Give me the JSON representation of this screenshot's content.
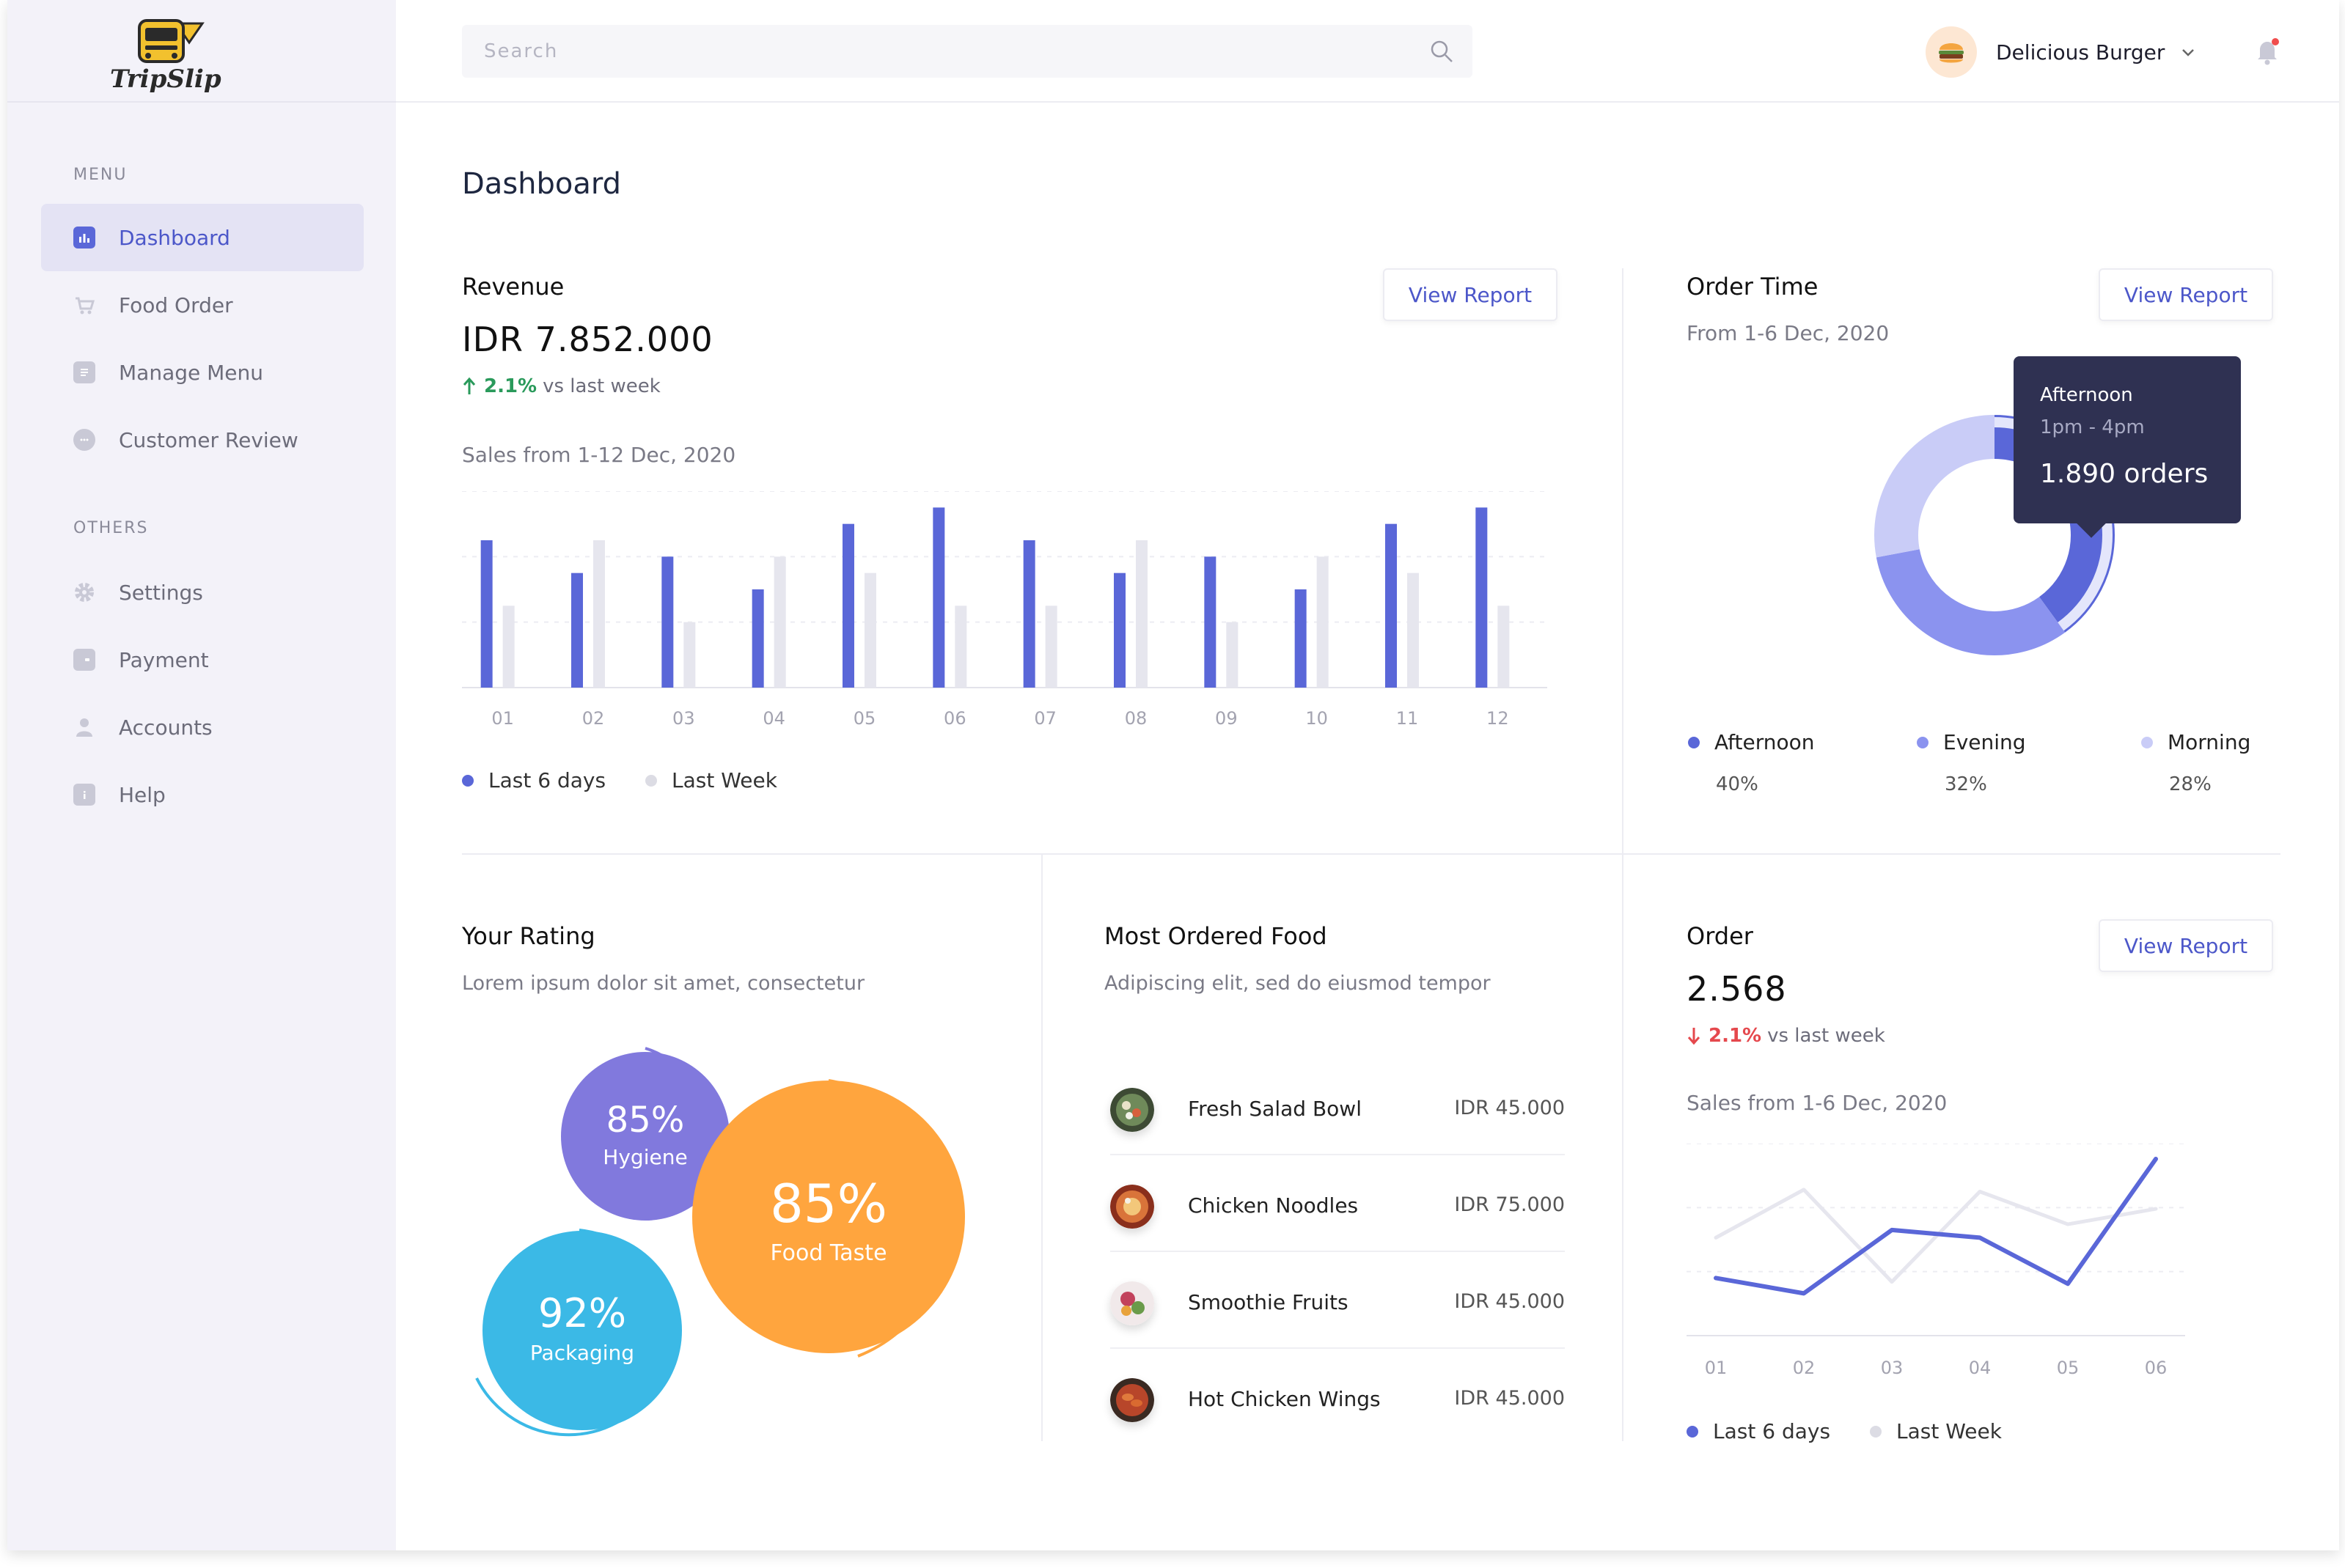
{
  "app": {
    "logo_text": "TripSlip"
  },
  "sidebar": {
    "menu_label": "MENU",
    "others_label": "OTHERS",
    "menu_items": [
      {
        "label": "Dashboard",
        "icon": "chart-icon",
        "active": true
      },
      {
        "label": "Food Order",
        "icon": "cart-icon"
      },
      {
        "label": "Manage Menu",
        "icon": "document-icon"
      },
      {
        "label": "Customer Review",
        "icon": "chat-icon"
      }
    ],
    "other_items": [
      {
        "label": "Settings",
        "icon": "gear-icon"
      },
      {
        "label": "Payment",
        "icon": "wallet-icon"
      },
      {
        "label": "Accounts",
        "icon": "user-icon"
      },
      {
        "label": "Help",
        "icon": "info-icon"
      }
    ]
  },
  "header": {
    "search_placeholder": "Search",
    "profile_name": "Delicious Burger"
  },
  "page": {
    "title": "Dashboard"
  },
  "revenue": {
    "title": "Revenue",
    "amount": "IDR 7.852.000",
    "change": "2.1%",
    "change_suffix": "vs last week",
    "subtitle": "Sales from 1-12 Dec, 2020",
    "button": "View Report",
    "legend_current": "Last 6 days",
    "legend_previous": "Last Week"
  },
  "order_time": {
    "title": "Order Time",
    "subtitle": "From 1-6 Dec, 2020",
    "button": "View Report",
    "tooltip": {
      "period": "Afternoon",
      "time": "1pm - 4pm",
      "orders": "1.890 orders"
    },
    "legend": [
      {
        "label": "Afternoon",
        "value": "40%",
        "color": "#5a67d8"
      },
      {
        "label": "Evening",
        "value": "32%",
        "color": "#8b93ef"
      },
      {
        "label": "Morning",
        "value": "28%",
        "color": "#c9ccf7"
      }
    ]
  },
  "rating": {
    "title": "Your Rating",
    "subtitle": "Lorem ipsum dolor sit amet, consectetur",
    "bubbles": [
      {
        "value": "85%",
        "label": "Hygiene",
        "color": "#8179dd"
      },
      {
        "value": "85%",
        "label": "Food Taste",
        "color": "#ffa53e"
      },
      {
        "value": "92%",
        "label": "Packaging",
        "color": "#3bb9e6"
      }
    ]
  },
  "most_ordered": {
    "title": "Most Ordered Food",
    "subtitle": "Adipiscing elit, sed do eiusmod tempor",
    "items": [
      {
        "name": "Fresh Salad Bowl",
        "price": "IDR 45.000",
        "color": "#6f8a5a"
      },
      {
        "name": "Chicken Noodles",
        "price": "IDR 75.000",
        "color": "#d9743a"
      },
      {
        "name": "Smoothie Fruits",
        "price": "IDR 45.000",
        "color": "#c2425c"
      },
      {
        "name": "Hot Chicken Wings",
        "price": "IDR 45.000",
        "color": "#b8462a"
      }
    ]
  },
  "order": {
    "title": "Order",
    "amount": "2.568",
    "change": "2.1%",
    "change_suffix": "vs last week",
    "subtitle": "Sales from 1-6 Dec, 2020",
    "button": "View Report",
    "legend_current": "Last 6 days",
    "legend_previous": "Last Week"
  },
  "chart_data": [
    {
      "type": "bar",
      "categories": [
        "01",
        "02",
        "03",
        "04",
        "05",
        "06",
        "07",
        "08",
        "09",
        "10",
        "11",
        "12"
      ],
      "series": [
        {
          "name": "Last 6 days",
          "values": [
            9,
            7,
            8,
            6,
            10,
            11,
            9,
            7,
            8,
            6,
            10,
            11
          ]
        },
        {
          "name": "Last Week",
          "values": [
            5,
            9,
            4,
            8,
            7,
            5,
            5,
            9,
            4,
            8,
            7,
            5
          ]
        }
      ],
      "ylim": [
        0,
        12
      ],
      "grid": true,
      "colors": {
        "Last 6 days": "#5a67d8",
        "Last Week": "#e6e6ee"
      }
    },
    {
      "type": "pie",
      "donut": true,
      "categories": [
        "Afternoon",
        "Evening",
        "Morning"
      ],
      "values": [
        40,
        32,
        28
      ],
      "colors": [
        "#5a67d8",
        "#8b93ef",
        "#c9ccf7"
      ]
    },
    {
      "type": "line",
      "x": [
        "01",
        "02",
        "03",
        "04",
        "05",
        "06"
      ],
      "series": [
        {
          "name": "Last 6 days",
          "values": [
            3,
            2.2,
            5.5,
            5.1,
            2.7,
            9.2
          ]
        },
        {
          "name": "Last Week",
          "values": [
            5.1,
            7.6,
            2.8,
            7.5,
            5.8,
            6.6
          ]
        }
      ],
      "ylim": [
        0,
        10
      ],
      "grid": true,
      "colors": {
        "Last 6 days": "#5a67d8",
        "Last Week": "#e6e6ee"
      }
    }
  ]
}
